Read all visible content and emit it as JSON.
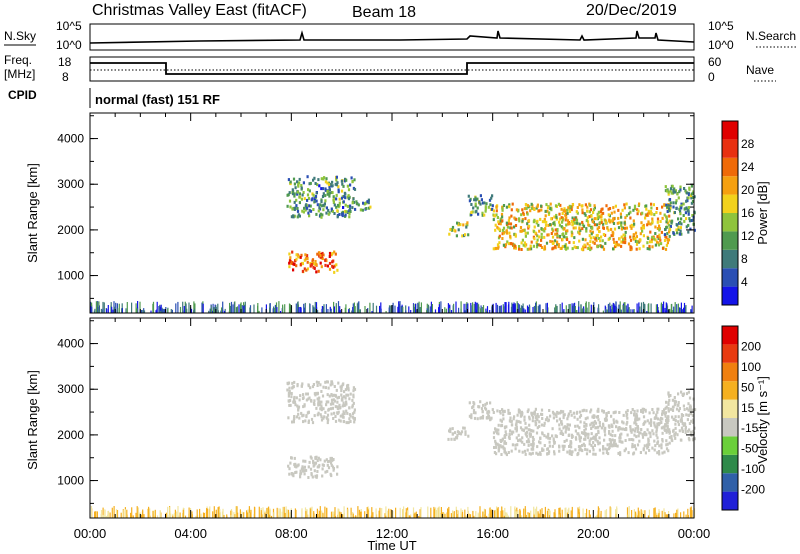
{
  "header": {
    "station": "Christmas Valley East (fitACF)",
    "beam": "Beam 18",
    "date": "20/Dec/2019"
  },
  "panels": {
    "nsky_label": "N.Sky",
    "nsky_ticks": [
      "10^5",
      "10^0"
    ],
    "nsearch_label": "N.Search",
    "nsearch_ticks": [
      "10^5",
      "10^0"
    ],
    "freq_label": "Freq.",
    "freq_unit": "[MHz]",
    "freq_ticks": [
      "18",
      "8"
    ],
    "nave_label": "Nave",
    "nave_ticks": [
      "60",
      "0"
    ],
    "cpid_label": "CPID",
    "cpid_value": "normal (fast) 151 RF"
  },
  "colors": {
    "power_scale": [
      "#1414e8",
      "#2a4fb4",
      "#3f7a7a",
      "#4f9a4f",
      "#8fc43c",
      "#f2d21c",
      "#f5a010",
      "#ef6a08",
      "#e83010",
      "#e00000"
    ],
    "velocity_scale": [
      "#2020d8",
      "#3060a8",
      "#2f8a4a",
      "#6bd03a",
      "#c8c8c0",
      "#f2e6a0",
      "#f5b020",
      "#f08010",
      "#e83a10",
      "#e00000"
    ],
    "echo_gray": "#c8c8c0"
  },
  "chart_data": [
    {
      "type": "heatmap",
      "title": "",
      "xlabel": "",
      "ylabel": "Slant Range [km]",
      "x_ticks": [
        "00:00",
        "04:00",
        "08:00",
        "12:00",
        "16:00",
        "20:00",
        "00:00"
      ],
      "y_ticks": [
        1000,
        2000,
        3000,
        4000
      ],
      "ylim": [
        180,
        4560
      ],
      "xlim_hours": [
        0,
        24
      ],
      "colorbar": {
        "label": "Power [dB]",
        "ticks": [
          4,
          8,
          12,
          16,
          20,
          24,
          28
        ],
        "range": [
          0,
          32
        ]
      },
      "echo_regions": [
        {
          "t_start": 7.8,
          "t_end": 10.5,
          "r_start": 2300,
          "r_end": 3200,
          "value": 10
        },
        {
          "t_start": 7.8,
          "t_end": 9.8,
          "r_start": 1100,
          "r_end": 1550,
          "value": 24
        },
        {
          "t_start": 10.5,
          "t_end": 11.2,
          "r_start": 2450,
          "r_end": 2700,
          "value": 10
        },
        {
          "t_start": 14.2,
          "t_end": 15.0,
          "r_start": 1900,
          "r_end": 2200,
          "value": 14
        },
        {
          "t_start": 15.0,
          "t_end": 16.0,
          "r_start": 2350,
          "r_end": 2800,
          "value": 10
        },
        {
          "t_start": 16.0,
          "t_end": 23.0,
          "r_start": 1600,
          "r_end": 2600,
          "value": 18
        },
        {
          "t_start": 22.8,
          "t_end": 24.0,
          "r_start": 1900,
          "r_end": 3000,
          "value": 10
        }
      ]
    },
    {
      "type": "heatmap",
      "title": "",
      "xlabel": "Time UT",
      "ylabel": "Slant Range [km]",
      "x_ticks": [
        "00:00",
        "04:00",
        "08:00",
        "12:00",
        "16:00",
        "20:00",
        "00:00"
      ],
      "y_ticks": [
        1000,
        2000,
        3000,
        4000
      ],
      "ylim": [
        180,
        4560
      ],
      "xlim_hours": [
        0,
        24
      ],
      "colorbar": {
        "label": "Velocity [m s⁻¹]",
        "ticks": [
          -200,
          -100,
          -50,
          -15,
          15,
          50,
          100,
          200
        ]
      },
      "echo_regions": [
        {
          "t_start": 7.8,
          "t_end": 10.5,
          "r_start": 2300,
          "r_end": 3200,
          "value": 0
        },
        {
          "t_start": 7.8,
          "t_end": 9.8,
          "r_start": 1100,
          "r_end": 1550,
          "value": 40
        },
        {
          "t_start": 14.2,
          "t_end": 15.0,
          "r_start": 1900,
          "r_end": 2200,
          "value": 0
        },
        {
          "t_start": 15.0,
          "t_end": 16.0,
          "r_start": 2350,
          "r_end": 2800,
          "value": 0
        },
        {
          "t_start": 16.0,
          "t_end": 23.0,
          "r_start": 1600,
          "r_end": 2600,
          "value": 0
        },
        {
          "t_start": 22.8,
          "t_end": 24.0,
          "r_start": 1900,
          "r_end": 3000,
          "value": 0
        }
      ]
    }
  ]
}
